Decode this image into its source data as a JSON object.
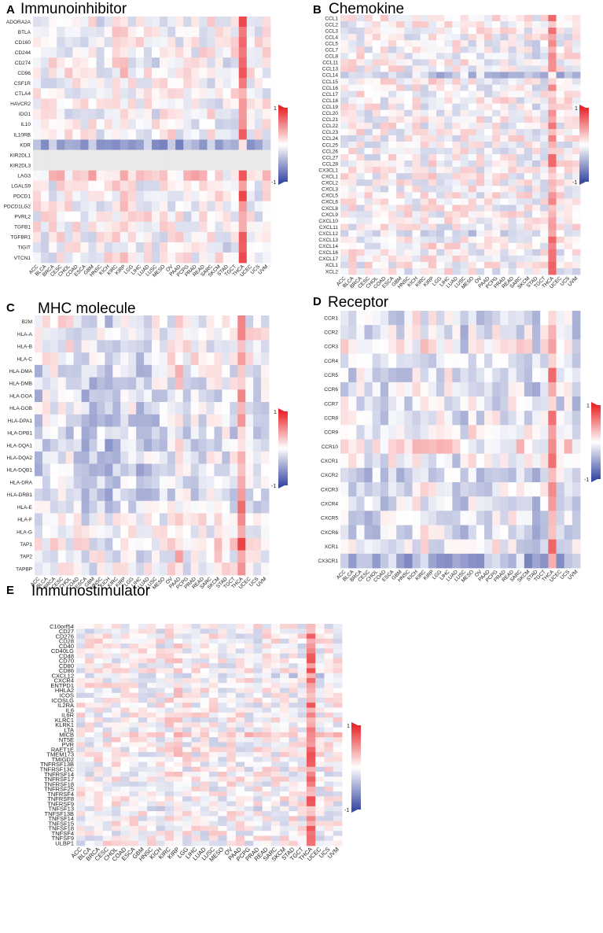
{
  "figure": {
    "type": "multi-panel heatmap figure"
  },
  "colors": {
    "high": "#e8262a",
    "mid": "#ffffff",
    "low": "#3a4aa2",
    "na": "#e9e9e9"
  },
  "chart_data": [
    {
      "type": "heatmap",
      "panel_letter": "A",
      "title": "Immunoinhibitor",
      "legend_max": "1",
      "legend_min": "-1",
      "value_range": [
        -1,
        1
      ],
      "columns": [
        "ACC",
        "BLCA",
        "BRCA",
        "CESC",
        "CHOL",
        "COAD",
        "ESCA",
        "GBM",
        "HNSC",
        "KICH",
        "KIRC",
        "KIRP",
        "LGG",
        "LIHC",
        "LUAD",
        "LUSC",
        "MESO",
        "OV",
        "PAAD",
        "PCPG",
        "PRAD",
        "READ",
        "SARC",
        "SKCM",
        "STAD",
        "TGCT",
        "THCA",
        "UCEC",
        "UCS",
        "UVM"
      ],
      "rows": [
        "ADORA2A",
        "BTLA",
        "CD160",
        "CD244",
        "CD274",
        "CD96",
        "CSF1R",
        "CTLA4",
        "HAVCR2",
        "IDO1",
        "IL10",
        "IL10RB",
        "KDR",
        "KIR2DL1",
        "KIR2DL3",
        "LAG3",
        "LGALS9",
        "PDCD1",
        "PDCD1LG2",
        "PVRL2",
        "TGFB1",
        "TGFBR1",
        "TIGIT",
        "VTCN1"
      ],
      "row_profile": [
        0,
        0,
        0,
        0,
        0,
        0,
        0,
        0,
        0,
        0,
        0,
        0,
        -0.45,
        "na",
        "na",
        0.2,
        0,
        0,
        0,
        0,
        0,
        0,
        0,
        0
      ],
      "col_profile": [
        0,
        0,
        0,
        0,
        0,
        0,
        0,
        0,
        -0.05,
        0,
        0.05,
        0.1,
        0,
        0,
        0,
        -0.05,
        0,
        0,
        0,
        0,
        0,
        0,
        0,
        0,
        -0.1,
        0,
        0.6,
        0,
        0,
        0
      ]
    },
    {
      "type": "heatmap",
      "panel_letter": "B",
      "title": "Chemokine",
      "legend_max": "1",
      "legend_min": "-1",
      "value_range": [
        -1,
        1
      ],
      "columns": [
        "ACC",
        "BLCA",
        "BRCA",
        "CESC",
        "CHOL",
        "COAD",
        "ESCA",
        "GBM",
        "HNSC",
        "KICH",
        "KIRC",
        "KIRP",
        "LGG",
        "LIHC",
        "LUAD",
        "LUSC",
        "MESO",
        "OV",
        "PAAD",
        "PCPG",
        "PRAD",
        "READ",
        "SARC",
        "SKCM",
        "STAD",
        "TGCT",
        "THCA",
        "UCEC",
        "UCS",
        "UVM"
      ],
      "rows": [
        "CCL1",
        "CCL2",
        "CCL3",
        "CCL4",
        "CCL5",
        "CCL7",
        "CCL8",
        "CCL11",
        "CCL13",
        "CCL14",
        "CCL15",
        "CCL16",
        "CCL17",
        "CCL18",
        "CCL19",
        "CCL20",
        "CCL21",
        "CCL22",
        "CCL23",
        "CCL24",
        "CCL25",
        "CCL26",
        "CCL27",
        "CCL28",
        "CX3CL1",
        "CXCL1",
        "CXCL2",
        "CXCL3",
        "CXCL5",
        "CXCL6",
        "CXCL8",
        "CXCL9",
        "CXCL10",
        "CXCL11",
        "CXCL12",
        "CXCL13",
        "CXCL14",
        "CXCL16",
        "CXCL17",
        "XCL1",
        "XCL2"
      ],
      "row_profile": [
        0,
        0,
        0,
        0,
        0,
        0,
        0,
        0,
        0,
        -0.3,
        0,
        0,
        0,
        0,
        0,
        0,
        0,
        0,
        0,
        0,
        0,
        0,
        0,
        0,
        0,
        0,
        0,
        0,
        0,
        0,
        0,
        0,
        0,
        0,
        -0.15,
        0,
        0,
        0,
        0,
        0,
        0
      ],
      "col_profile": [
        0,
        0,
        0,
        0,
        0,
        0,
        0,
        0,
        0,
        0,
        0,
        0.05,
        0,
        0,
        0,
        0,
        0,
        0,
        0,
        0,
        0,
        0,
        0,
        0,
        -0.05,
        0,
        0.45,
        0,
        0,
        0
      ]
    },
    {
      "type": "heatmap",
      "panel_letter": "C",
      "title": "MHC molecule",
      "legend_max": "1",
      "legend_min": "-1",
      "value_range": [
        -1,
        1
      ],
      "columns": [
        "ACC",
        "BLCA",
        "BRCA",
        "CESC",
        "CHOL",
        "COAD",
        "ESCA",
        "GBM",
        "HNSC",
        "KICH",
        "KIRC",
        "KIRP",
        "LGG",
        "LIHC",
        "LUAD",
        "LUSC",
        "MESO",
        "OV",
        "PAAD",
        "PCPG",
        "PRAD",
        "READ",
        "SARC",
        "SKCM",
        "STAD",
        "TGCT",
        "THCA",
        "UCEC",
        "UCS",
        "UVM"
      ],
      "rows": [
        "B2M",
        "HLA-A",
        "HLA-B",
        "HLA-C",
        "HLA-DMA",
        "HLA-DMB",
        "HLA-DOA",
        "HLA-DOB",
        "HLA-DPA1",
        "HLA-DPB1",
        "HLA-DQA1",
        "HLA-DQA2",
        "HLA-DQB1",
        "HLA-DRA",
        "HLA-DRB1",
        "HLA-E",
        "HLA-F",
        "HLA-G",
        "TAP1",
        "TAP2",
        "TAPBP"
      ],
      "row_profile": [
        0,
        0,
        0,
        0,
        -0.1,
        -0.1,
        -0.15,
        -0.1,
        -0.15,
        -0.15,
        -0.15,
        -0.1,
        -0.15,
        -0.15,
        -0.15,
        -0.1,
        0,
        0,
        0.05,
        0.05,
        0
      ],
      "col_profile": [
        -0.1,
        0,
        0,
        0,
        0,
        -0.05,
        -0.1,
        -0.15,
        -0.1,
        -0.25,
        -0.1,
        0,
        0,
        -0.2,
        -0.1,
        -0.05,
        0,
        0,
        0.2,
        0,
        0,
        0,
        0,
        0,
        0,
        0,
        0.55,
        0,
        0,
        0
      ]
    },
    {
      "type": "heatmap",
      "panel_letter": "D",
      "title": "Receptor",
      "legend_max": "1",
      "legend_min": "-1",
      "value_range": [
        -1,
        1
      ],
      "columns": [
        "ACC",
        "BLCA",
        "BRCA",
        "CESC",
        "CHOL",
        "COAD",
        "ESCA",
        "GBM",
        "HNSC",
        "KICH",
        "KIRC",
        "KIRP",
        "LGG",
        "LIHC",
        "LUAD",
        "LUSC",
        "MESO",
        "OV",
        "PAAD",
        "PCPG",
        "PRAD",
        "READ",
        "SARC",
        "SKCM",
        "STAD",
        "TGCT",
        "THCA",
        "UCEC",
        "UCS",
        "UVM"
      ],
      "rows": [
        "CCR1",
        "CCR2",
        "CCR3",
        "CCR4",
        "CCR5",
        "CCR6",
        "CCR7",
        "CCR8",
        "CCR9",
        "CCR10",
        "CXCR1",
        "CXCR2",
        "CXCR3",
        "CXCR4",
        "CXCR5",
        "CXCR6",
        "XCR1",
        "CX3CR1"
      ],
      "row_profile": [
        -0.1,
        -0.1,
        0,
        -0.1,
        -0.1,
        -0.1,
        -0.1,
        -0.05,
        0,
        0.1,
        -0.05,
        -0.15,
        -0.1,
        -0.1,
        -0.1,
        -0.1,
        -0.05,
        -0.35
      ],
      "col_profile": [
        0,
        -0.05,
        0,
        -0.1,
        -0.1,
        -0.1,
        0,
        -0.05,
        -0.1,
        0.05,
        0.1,
        0,
        0,
        0,
        -0.1,
        -0.15,
        0,
        -0.1,
        -0.05,
        0,
        0,
        0,
        0,
        -0.05,
        -0.15,
        0,
        0.55,
        -0.05,
        0,
        -0.1
      ]
    },
    {
      "type": "heatmap",
      "panel_letter": "E",
      "title": "Immunostimulator",
      "legend_max": "1",
      "legend_min": "-1",
      "value_range": [
        -1,
        1
      ],
      "columns": [
        "ACC",
        "BLCA",
        "BRCA",
        "CESC",
        "CHOL",
        "COAD",
        "ESCA",
        "GBM",
        "HNSC",
        "KICH",
        "KIRC",
        "KIRP",
        "LGG",
        "LIHC",
        "LUAD",
        "LUSC",
        "MESO",
        "OV",
        "PAAD",
        "PCPG",
        "PRAD",
        "READ",
        "SARC",
        "SKCM",
        "STAD",
        "TGCT",
        "THCA",
        "UCEC",
        "UCS",
        "UVM"
      ],
      "rows": [
        "C10orf54",
        "CD27",
        "CD276",
        "CD28",
        "CD40",
        "CD40LG",
        "CD48",
        "CD70",
        "CD80",
        "CD86",
        "CXCL12",
        "CXCR4",
        "ENTPD1",
        "HHLA2",
        "ICOS",
        "ICOSLG",
        "IL2RA",
        "IL6",
        "IL6R",
        "KLRC1",
        "KLRK1",
        "LTA",
        "MICB",
        "NT5E",
        "PVR",
        "RAET1E",
        "TMEM173",
        "TMIGD2",
        "TNFRSF13B",
        "TNFRSF13C",
        "TNFRSF14",
        "TNFRSF17",
        "TNFRSF18",
        "TNFRSF25",
        "TNFRSF4",
        "TNFRSF8",
        "TNFRSF9",
        "TNFSF13",
        "TNFSF13B",
        "TNFSF14",
        "TNFSF15",
        "TNFSF18",
        "TNFSF4",
        "TNFSF9",
        "ULBP1"
      ],
      "row_profile": [
        0,
        0,
        0,
        0,
        0,
        0,
        0,
        0,
        0,
        0,
        -0.15,
        0,
        0,
        0,
        0,
        0,
        0,
        0,
        0,
        0,
        0,
        0,
        0.15,
        0,
        0,
        0,
        0,
        0,
        0,
        0,
        0,
        0,
        0,
        0,
        0,
        0,
        0,
        -0.1,
        0,
        0,
        0,
        0,
        0,
        0,
        0
      ],
      "col_profile": [
        0,
        0,
        0,
        0,
        0,
        0,
        0,
        0,
        0,
        0,
        0.05,
        0.1,
        0,
        0,
        0,
        0,
        0,
        0,
        0,
        0,
        0,
        0,
        0,
        0,
        0,
        0,
        0.55,
        0,
        0,
        0
      ]
    }
  ]
}
